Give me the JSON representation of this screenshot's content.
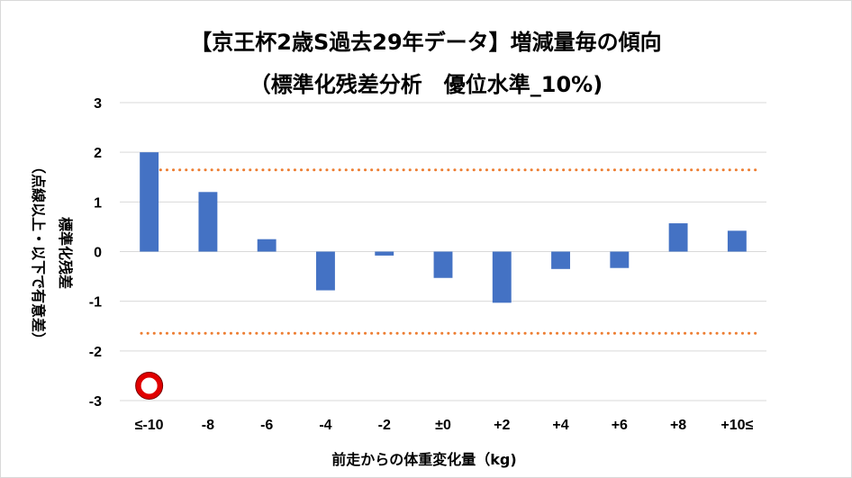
{
  "chart_data": {
    "type": "bar",
    "title": "【京王杯2歳S過去29年データ】増減量毎の傾向",
    "subtitle": "（標準化残差分析　優位水準_10%)",
    "xlabel": "前走からの体重変化量（kg)",
    "ylabel": "標準化残差",
    "ylabel_note": "（点線以上・以下で有意差）",
    "categories": [
      "≤-10",
      "-8",
      "-6",
      "-4",
      "-2",
      "±0",
      "+2",
      "+4",
      "+6",
      "+8",
      "+10≤"
    ],
    "values": [
      2.0,
      1.2,
      0.25,
      -0.78,
      -0.08,
      -0.53,
      -1.03,
      -0.35,
      -0.33,
      0.57,
      0.42
    ],
    "yticks": [
      "3",
      "2",
      "1",
      "0",
      "-1",
      "-2",
      "-3"
    ],
    "ylim": [
      -3,
      3
    ],
    "threshold_upper": 1.645,
    "threshold_lower": -1.645,
    "grid": true,
    "legend": "none",
    "highlight_marker": {
      "category": "≤-10",
      "value": -2.7
    },
    "colors": {
      "bar": "#4472c4",
      "threshold": "#ed7d31",
      "grid": "#d9d9d9",
      "marker_ring": "#e00000"
    }
  }
}
